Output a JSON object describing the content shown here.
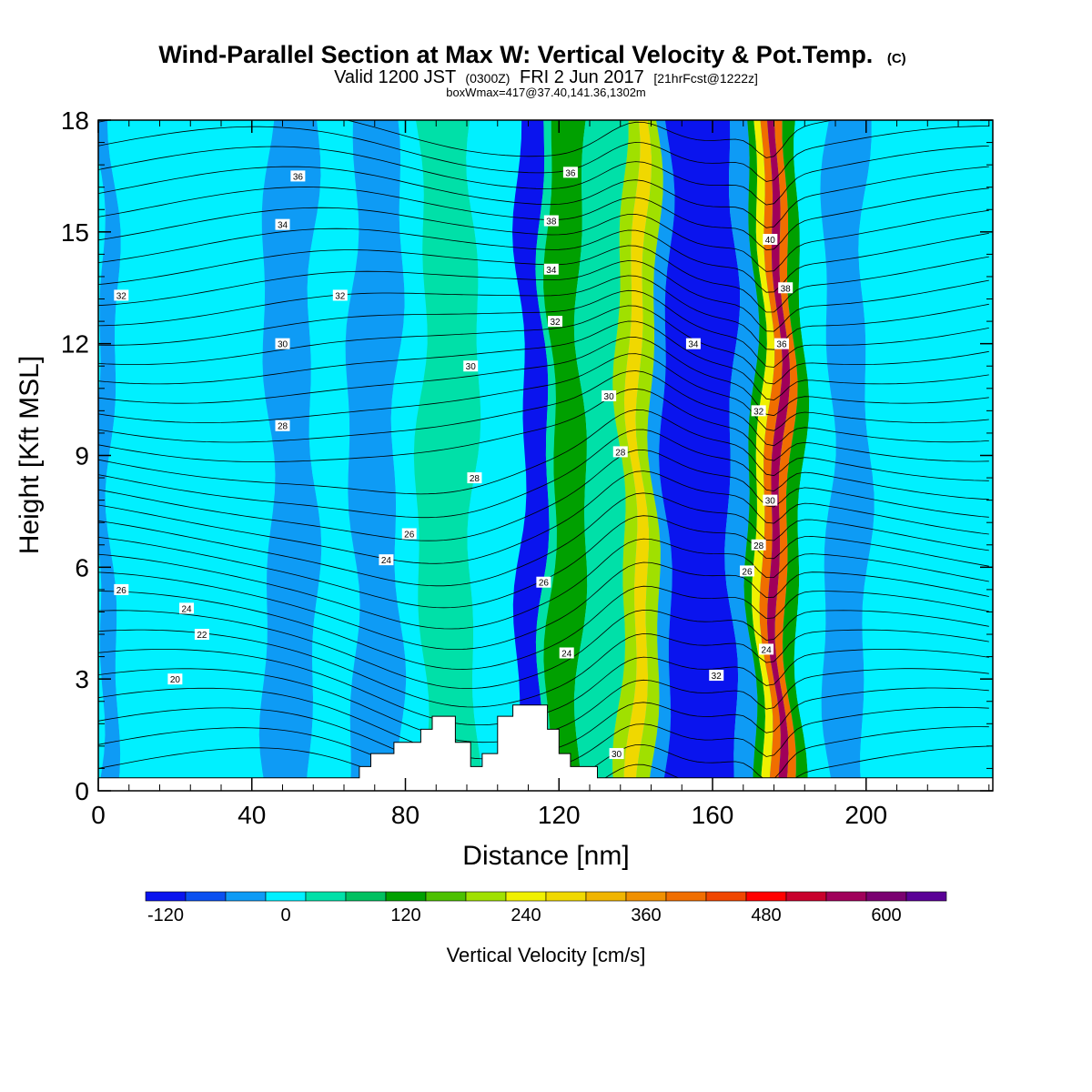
{
  "chart_data": {
    "type": "heatmap",
    "title": "Wind-Parallel Section at Max W: Vertical Velocity & Pot.Temp.",
    "title_mark": "(C)",
    "subtitle_parts": [
      "Valid 1200 JST",
      "(0300Z)",
      "FRI 2 Jun 2017",
      "[21hrFcst@1222z]"
    ],
    "subtitle2": "boxWmax=417@37.40,141.36,1302m",
    "xlabel": "Distance [nm]",
    "ylabel": "Height [Kft MSL]",
    "xlim": [
      0,
      233
    ],
    "ylim": [
      0,
      18
    ],
    "x_ticks": [
      0,
      40,
      80,
      120,
      160,
      200
    ],
    "x_tick_labels": [
      "0",
      "40",
      "80",
      "120",
      "160",
      "200"
    ],
    "y_ticks": [
      0,
      3,
      6,
      9,
      12,
      15,
      18
    ],
    "y_tick_labels": [
      "0",
      "3",
      "6",
      "9",
      "12",
      "15",
      "18"
    ],
    "grid": false,
    "colorbar": {
      "title": "Vertical Velocity [cm/s]",
      "levels": [
        -120,
        -80,
        -40,
        0,
        40,
        80,
        120,
        160,
        200,
        240,
        280,
        320,
        360,
        400,
        440,
        480,
        520,
        560,
        600,
        640
      ],
      "colors": [
        "#0a14ee",
        "#0a50f0",
        "#0e9bf5",
        "#00f0ff",
        "#00e0a8",
        "#00c060",
        "#00a000",
        "#4cc000",
        "#a0e000",
        "#f0f000",
        "#f0d800",
        "#f0b400",
        "#f09000",
        "#f06e00",
        "#f04600",
        "#ff0000",
        "#c8002c",
        "#a0005a",
        "#7a0070",
        "#5a0096"
      ],
      "tick_values": [
        -120,
        0,
        120,
        240,
        360,
        480,
        600
      ],
      "tick_labels": [
        "-120",
        "0",
        "120",
        "240",
        "360",
        "480",
        "600"
      ]
    },
    "vertical_velocity_bands": [
      {
        "x_start": 0,
        "x_end": 4,
        "value": -20
      },
      {
        "x_start": 4,
        "x_end": 44,
        "value": 10
      },
      {
        "x_start": 44,
        "x_end": 56,
        "value": -20
      },
      {
        "x_start": 56,
        "x_end": 66,
        "value": 10
      },
      {
        "x_start": 66,
        "x_end": 78,
        "value": -20
      },
      {
        "x_start": 78,
        "x_end": 84,
        "value": 10
      },
      {
        "x_start": 84,
        "x_end": 98,
        "value": 60
      },
      {
        "x_start": 98,
        "x_end": 110,
        "value": 10
      },
      {
        "x_start": 110,
        "x_end": 116,
        "value": -90
      },
      {
        "x_start": 116,
        "x_end": 118,
        "value": 60
      },
      {
        "x_start": 118,
        "x_end": 126,
        "value": 150
      },
      {
        "x_start": 126,
        "x_end": 136,
        "value": 60
      },
      {
        "x_start": 136,
        "x_end": 139,
        "value": 200
      },
      {
        "x_start": 139,
        "x_end": 142,
        "value": 300
      },
      {
        "x_start": 142,
        "x_end": 145,
        "value": 200
      },
      {
        "x_start": 145,
        "x_end": 148,
        "value": -40
      },
      {
        "x_start": 148,
        "x_end": 165,
        "value": -90
      },
      {
        "x_start": 165,
        "x_end": 170,
        "value": -20
      },
      {
        "x_start": 170,
        "x_end": 172,
        "value": 150
      },
      {
        "x_start": 172,
        "x_end": 174,
        "value": 260
      },
      {
        "x_start": 174,
        "x_end": 176,
        "value": 420
      },
      {
        "x_start": 176,
        "x_end": 178,
        "value": 560
      },
      {
        "x_start": 178,
        "x_end": 180,
        "value": 420
      },
      {
        "x_start": 180,
        "x_end": 183,
        "value": 150
      },
      {
        "x_start": 183,
        "x_end": 190,
        "value": 10
      },
      {
        "x_start": 190,
        "x_end": 200,
        "value": -20
      },
      {
        "x_start": 200,
        "x_end": 233,
        "value": 10
      }
    ],
    "terrain": {
      "x": [
        0,
        68,
        68,
        71,
        71,
        77,
        77,
        84,
        84,
        87,
        87,
        93,
        93,
        97,
        97,
        100,
        100,
        104,
        104,
        108,
        108,
        117,
        117,
        120,
        120,
        123,
        123,
        130,
        130,
        233
      ],
      "height": [
        0.35,
        0.35,
        0.65,
        0.65,
        1.0,
        1.0,
        1.3,
        1.3,
        1.65,
        1.65,
        2.0,
        2.0,
        1.3,
        1.3,
        0.65,
        0.65,
        1.0,
        1.0,
        2.0,
        2.0,
        2.3,
        2.3,
        1.65,
        1.65,
        1.0,
        1.0,
        0.65,
        0.65,
        0.35,
        0.35
      ]
    },
    "theta_contours": {
      "levels_k": [
        20,
        22,
        24,
        26,
        28,
        30,
        32,
        34,
        36,
        38,
        40
      ],
      "labels": [
        {
          "text": "36",
          "x": 52,
          "y": 16.5
        },
        {
          "text": "34",
          "x": 48,
          "y": 15.2
        },
        {
          "text": "32",
          "x": 6,
          "y": 13.3
        },
        {
          "text": "32",
          "x": 63,
          "y": 13.3
        },
        {
          "text": "30",
          "x": 48,
          "y": 12.0
        },
        {
          "text": "30",
          "x": 97,
          "y": 11.4
        },
        {
          "text": "28",
          "x": 48,
          "y": 9.8
        },
        {
          "text": "28",
          "x": 98,
          "y": 8.4
        },
        {
          "text": "26",
          "x": 81,
          "y": 6.9
        },
        {
          "text": "24",
          "x": 75,
          "y": 6.2
        },
        {
          "text": "26",
          "x": 6,
          "y": 5.4
        },
        {
          "text": "24",
          "x": 23,
          "y": 4.9
        },
        {
          "text": "22",
          "x": 27,
          "y": 4.2
        },
        {
          "text": "20",
          "x": 20,
          "y": 3.0
        },
        {
          "text": "36",
          "x": 123,
          "y": 16.6
        },
        {
          "text": "38",
          "x": 118,
          "y": 15.3
        },
        {
          "text": "34",
          "x": 118,
          "y": 14.0
        },
        {
          "text": "32",
          "x": 119,
          "y": 12.6
        },
        {
          "text": "30",
          "x": 133,
          "y": 10.6
        },
        {
          "text": "28",
          "x": 136,
          "y": 9.1
        },
        {
          "text": "26",
          "x": 116,
          "y": 5.6
        },
        {
          "text": "24",
          "x": 122,
          "y": 3.7
        },
        {
          "text": "30",
          "x": 135,
          "y": 1.0
        },
        {
          "text": "34",
          "x": 155,
          "y": 12.0
        },
        {
          "text": "32",
          "x": 161,
          "y": 3.1
        },
        {
          "text": "40",
          "x": 175,
          "y": 14.8
        },
        {
          "text": "38",
          "x": 179,
          "y": 13.5
        },
        {
          "text": "36",
          "x": 178,
          "y": 12.0
        },
        {
          "text": "32",
          "x": 172,
          "y": 10.2
        },
        {
          "text": "30",
          "x": 175,
          "y": 7.8
        },
        {
          "text": "28",
          "x": 172,
          "y": 6.6
        },
        {
          "text": "26",
          "x": 169,
          "y": 5.9
        },
        {
          "text": "24",
          "x": 174,
          "y": 3.8
        }
      ]
    }
  }
}
